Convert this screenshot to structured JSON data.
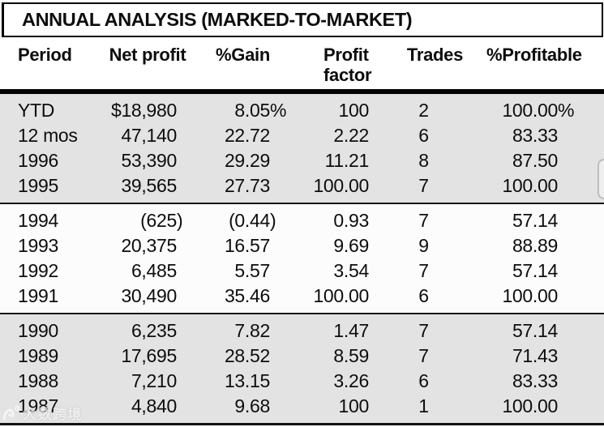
{
  "title": "ANNUAL ANALYSIS (MARKED-TO-MARKET)",
  "header": {
    "period": "Period",
    "net_profit": "Net profit",
    "gain": "%Gain",
    "profit_factor_line1": "Profit",
    "profit_factor_line2": "factor",
    "trades": "Trades",
    "profitable": "%Profitable"
  },
  "chart_data": {
    "type": "table",
    "title": "ANNUAL ANALYSIS (MARKED-TO-MARKET)",
    "columns": [
      "Period",
      "Net profit",
      "%Gain",
      "Profit factor",
      "Trades",
      "%Profitable"
    ],
    "rows": [
      [
        "YTD",
        "$18,980",
        "8.05%",
        "100",
        "2",
        "100.00%"
      ],
      [
        "12 mos",
        "47,140",
        "22.72",
        "2.22",
        "6",
        "83.33"
      ],
      [
        "1996",
        "53,390",
        "29.29",
        "11.21",
        "8",
        "87.50"
      ],
      [
        "1995",
        "39,565",
        "27.73",
        "100.00",
        "7",
        "100.00"
      ],
      [
        "1994",
        "(625)",
        "(0.44)",
        "0.93",
        "7",
        "57.14"
      ],
      [
        "1993",
        "20,375",
        "16.57",
        "9.69",
        "9",
        "88.89"
      ],
      [
        "1992",
        "6,485",
        "5.57",
        "3.54",
        "7",
        "57.14"
      ],
      [
        "1991",
        "30,490",
        "35.46",
        "100.00",
        "6",
        "100.00"
      ],
      [
        "1990",
        "6,235",
        "7.82",
        "1.47",
        "7",
        "57.14"
      ],
      [
        "1989",
        "17,695",
        "28.52",
        "8.59",
        "7",
        "71.43"
      ],
      [
        "1988",
        "7,210",
        "13.15",
        "3.26",
        "6",
        "83.33"
      ],
      [
        "1987",
        "4,840",
        "9.68",
        "100",
        "1",
        "100.00"
      ]
    ],
    "row_groups": [
      {
        "start": 0,
        "end": 3,
        "shade": "gray"
      },
      {
        "start": 4,
        "end": 7,
        "shade": "white"
      },
      {
        "start": 8,
        "end": 11,
        "shade": "gray"
      }
    ],
    "notes": "Values in parentheses are negative; %, $ and ) symbols hang outside the decimal-aligned column edge"
  },
  "watermark": {
    "text": "大数跨境"
  },
  "colors": {
    "band_gray": "#e3e3e3",
    "band_white": "#fcfcfc",
    "rule_black": "#000000",
    "text": "#0d0d0d",
    "watermark_white": "#ffffff"
  }
}
